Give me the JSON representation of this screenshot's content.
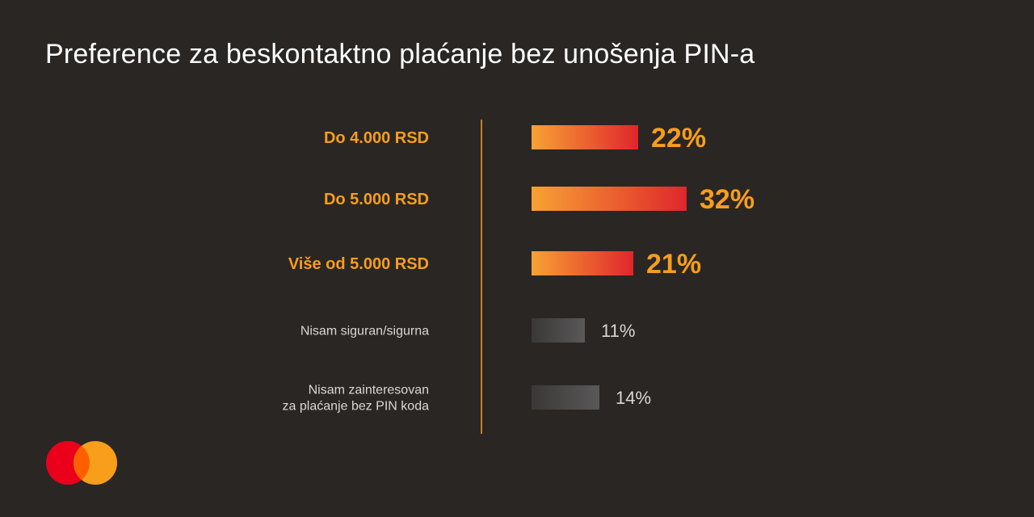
{
  "title": "Preference za beskontaktno plaćanje bez unošenja PIN-a",
  "colors": {
    "background": "#2a2624",
    "highlight_text": "#f79e1b",
    "highlight_bar_start": "#f7a233",
    "highlight_bar_end": "#e0262c",
    "muted_bar_start": "#3a3837",
    "muted_bar_end": "#5a5858",
    "muted_text": "#d9d6d4",
    "axis": "#f79e1b",
    "logo_red": "#eb001b",
    "logo_orange": "#f79e1b",
    "logo_overlap": "#ff5f00"
  },
  "chart_data": {
    "type": "bar",
    "orientation": "horizontal",
    "title": "Preference za beskontaktno plaćanje bez unošenja PIN-a",
    "unit": "%",
    "grid": false,
    "categories": [
      [
        "Do 4.000 RSD"
      ],
      [
        "Do 5.000 RSD"
      ],
      [
        "Više od 5.000 RSD"
      ],
      [
        "Nisam siguran/sigurna"
      ],
      [
        "Nisam zainteresovan",
        "za plaćanje bez PIN koda"
      ]
    ],
    "values": [
      22,
      32,
      21,
      11,
      14
    ],
    "value_labels": [
      "22%",
      "32%",
      "21%",
      "11%",
      "14%"
    ],
    "highlighted": [
      true,
      true,
      true,
      false,
      false
    ],
    "xlim": [
      0,
      32
    ]
  },
  "logo": {
    "name": "mastercard-logo"
  }
}
